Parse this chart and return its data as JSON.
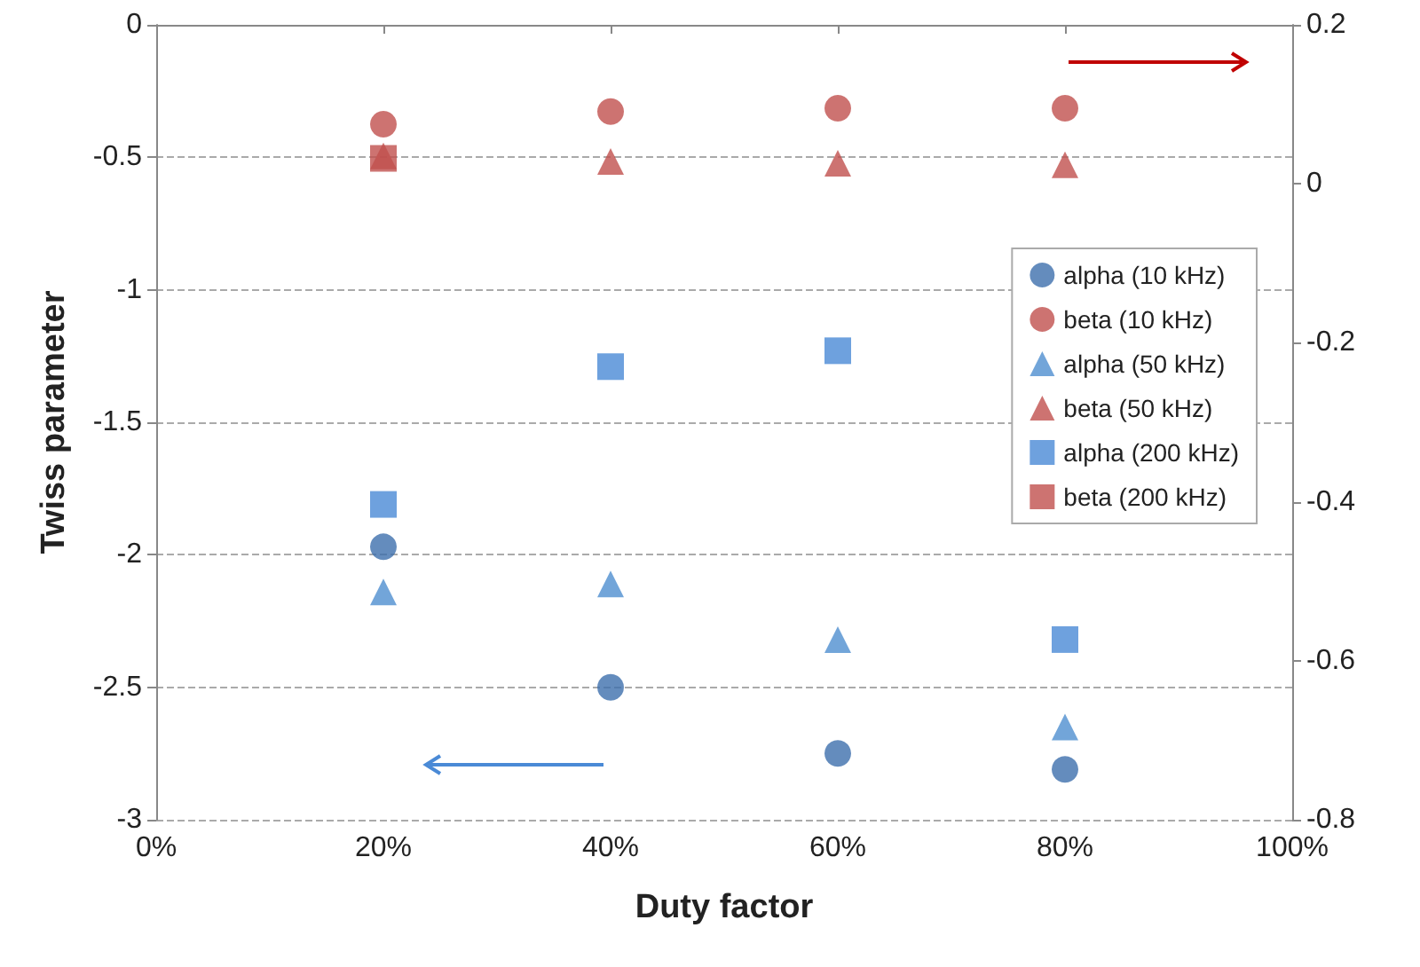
{
  "chart_data": {
    "type": "scatter",
    "xlabel": "Duty factor",
    "ylabel": "Twiss parameter",
    "xlim": [
      0,
      1
    ],
    "xticks": [
      {
        "value": 0,
        "label": "0%"
      },
      {
        "value": 0.2,
        "label": "20%"
      },
      {
        "value": 0.4,
        "label": "40%"
      },
      {
        "value": 0.6,
        "label": "60%"
      },
      {
        "value": 0.8,
        "label": "80%"
      },
      {
        "value": 1,
        "label": "100%"
      }
    ],
    "ylim": [
      -3,
      0
    ],
    "yticks": [
      -3,
      -2.5,
      -2,
      -1.5,
      -1,
      -0.5,
      0
    ],
    "y2lim": [
      -0.8,
      0.2
    ],
    "y2ticks": [
      -0.8,
      -0.6,
      -0.4,
      -0.2,
      0,
      0.2
    ],
    "x": [
      0.2,
      0.4,
      0.6,
      0.8
    ],
    "series": [
      {
        "name": "alpha (10 kHz)",
        "color": "#3d6fad",
        "marker": "circle",
        "values": [
          -1.97,
          -2.5,
          -2.75,
          -2.81
        ]
      },
      {
        "name": "beta (10 kHz)",
        "color": "#c0504d",
        "marker": "circle",
        "axis": "y2",
        "values": [
          0.075,
          0.091,
          0.095,
          0.095
        ]
      },
      {
        "name": "alpha (50 kHz)",
        "color": "#4f8fcf",
        "marker": "triangle",
        "values": [
          -2.14,
          -2.11,
          -2.32,
          -2.65
        ]
      },
      {
        "name": "beta (50 kHz)",
        "color": "#c0504d",
        "marker": "triangle",
        "axis": "y2",
        "values": [
          0.035,
          0.028,
          0.026,
          0.024
        ]
      },
      {
        "name": "alpha (200 kHz)",
        "color": "#4a8ad6",
        "marker": "square",
        "values": [
          -1.81,
          -1.29,
          -1.23,
          -2.32
        ]
      },
      {
        "name": "beta (200 kHz)",
        "color": "#c0504d",
        "marker": "square",
        "axis": "y2",
        "values": [
          0.032,
          null,
          null,
          null
        ]
      }
    ],
    "grid": "y",
    "legend": "right"
  }
}
